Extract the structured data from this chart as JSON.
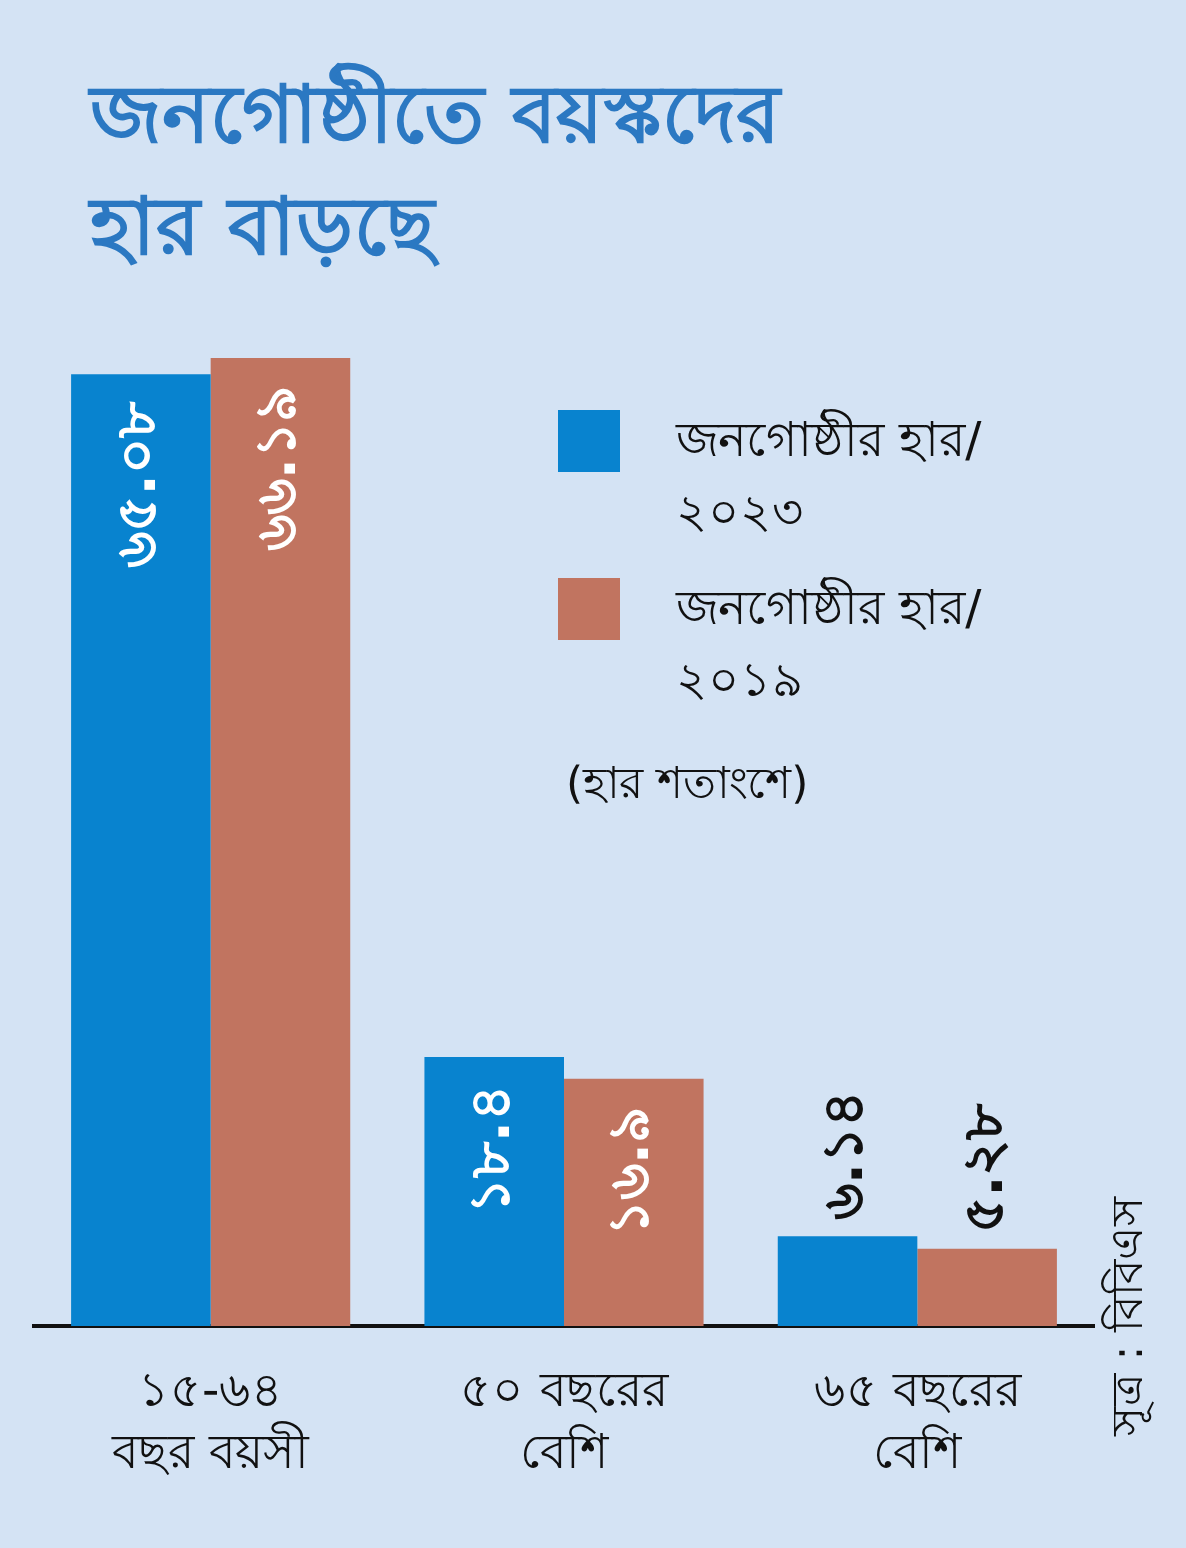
{
  "chart_data": {
    "type": "bar",
    "title": "জনগোষ্ঠীতে বয়স্কদের\nহার বাড়ছে",
    "categories": [
      "১৫-৬৪\nবছর বয়সী",
      "৫০ বছরের\nবেশি",
      "৬৫ বছরের\nবেশি"
    ],
    "series": [
      {
        "name": "জনগোষ্ঠীর হার/\n২০২৩",
        "color": "#0883cf",
        "values": [
          65.08,
          18.4,
          6.14
        ],
        "value_labels": [
          "৬৫.০৮",
          "১৮.৪",
          "৬.১৪"
        ]
      },
      {
        "name": "জনগোষ্ঠীর হার/\n২০১৯",
        "color": "#c17460",
        "values": [
          66.19,
          16.9,
          5.28
        ],
        "value_labels": [
          "৬৬.১৯",
          "১৬.৯",
          "৫.২৮"
        ]
      }
    ],
    "legend": "top right",
    "tick_labels": "x",
    "annotations": [
      "(হার শতাংশে)",
      "সূত্র : বিবিএস"
    ]
  }
}
